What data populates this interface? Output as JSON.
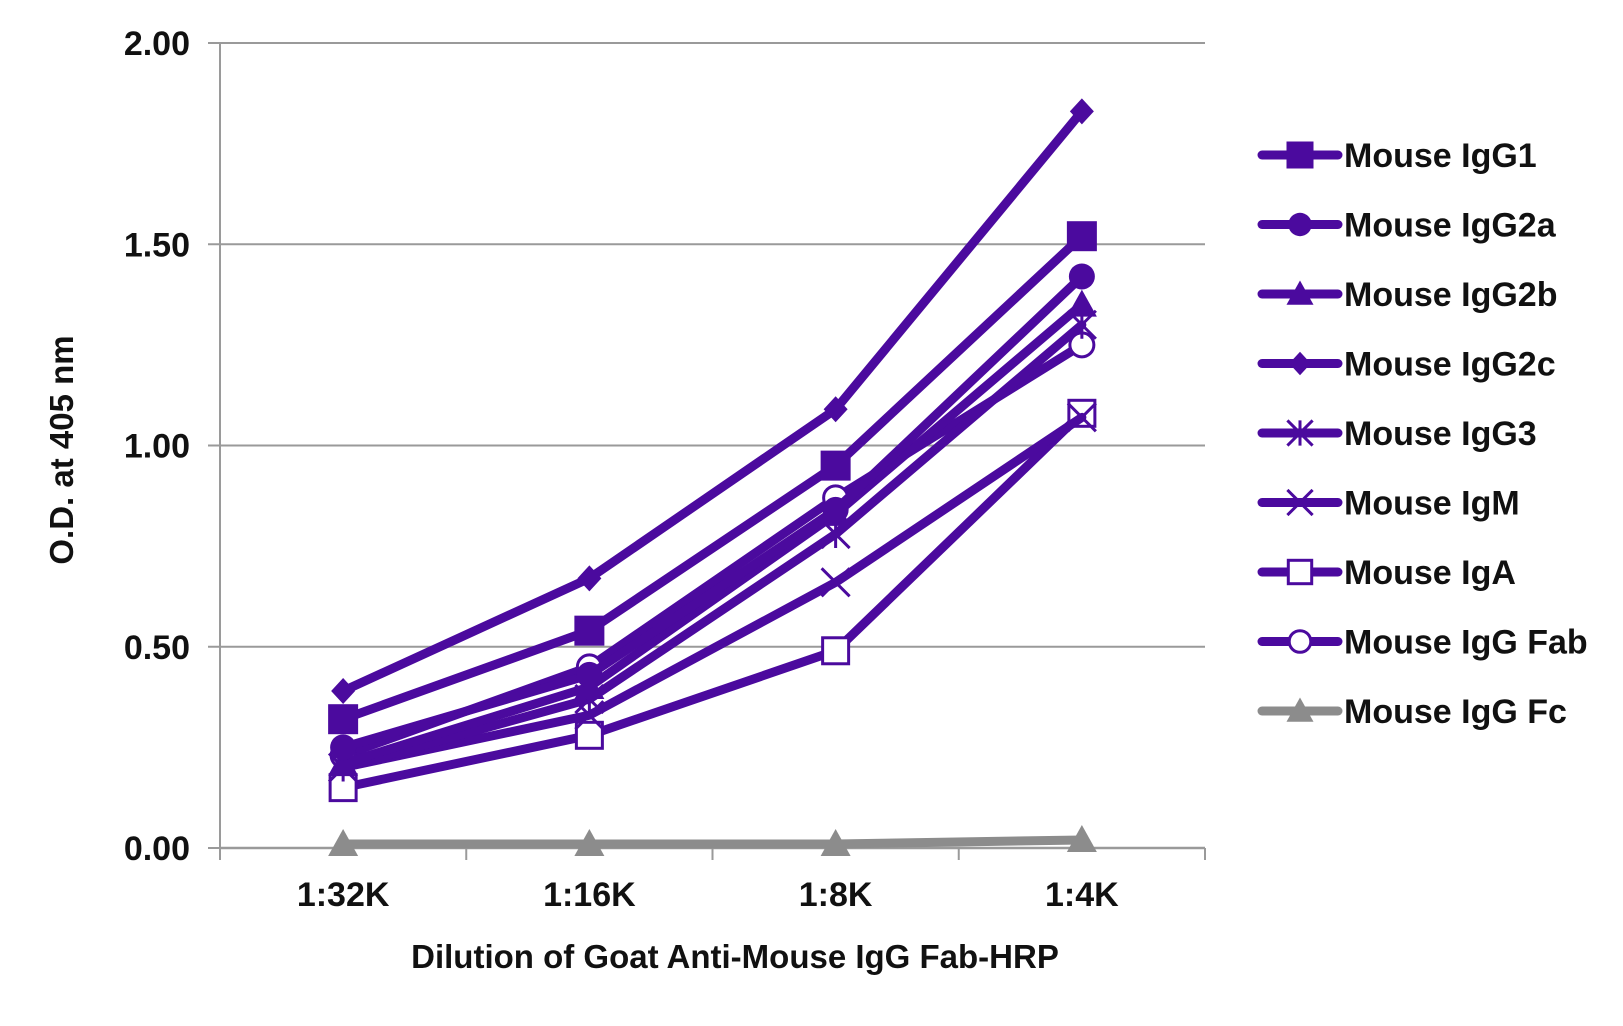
{
  "chart_data": {
    "type": "line",
    "title": "",
    "xlabel": "Dilution of Goat Anti-Mouse IgG Fab-HRP",
    "ylabel": "O.D. at 405 nm",
    "categories": [
      "1:32K",
      "1:16K",
      "1:8K",
      "1:4K"
    ],
    "ylim": [
      0,
      2
    ],
    "yticks": [
      "0.00",
      "0.50",
      "1.00",
      "1.50",
      "2.00"
    ],
    "ytick_values": [
      0,
      0.5,
      1,
      1.5,
      2
    ],
    "grid": "horizontal",
    "legend_position": "right",
    "series": [
      {
        "name": "Mouse IgG1",
        "marker": "square",
        "color": "#4B0A9E",
        "values": [
          0.32,
          0.54,
          0.95,
          1.52
        ]
      },
      {
        "name": "Mouse IgG2a",
        "marker": "circle",
        "color": "#4B0A9E",
        "values": [
          0.25,
          0.43,
          0.84,
          1.42
        ]
      },
      {
        "name": "Mouse IgG2b",
        "marker": "triangle",
        "color": "#4B0A9E",
        "values": [
          0.21,
          0.4,
          0.83,
          1.35
        ]
      },
      {
        "name": "Mouse IgG2c",
        "marker": "diamond",
        "color": "#4B0A9E",
        "values": [
          0.39,
          0.67,
          1.09,
          1.83
        ]
      },
      {
        "name": "Mouse IgG3",
        "marker": "asterisk",
        "color": "#4B0A9E",
        "values": [
          0.2,
          0.37,
          0.78,
          1.3
        ]
      },
      {
        "name": "Mouse IgM",
        "marker": "x",
        "color": "#4B0A9E",
        "values": [
          0.2,
          0.33,
          0.66,
          1.07
        ]
      },
      {
        "name": "Mouse IgA",
        "marker": "open-square",
        "color": "#4B0A9E",
        "values": [
          0.15,
          0.28,
          0.49,
          1.08
        ]
      },
      {
        "name": "Mouse IgG Fab",
        "marker": "open-circle",
        "color": "#4B0A9E",
        "values": [
          0.23,
          0.45,
          0.87,
          1.25
        ]
      },
      {
        "name": "Mouse IgG Fc",
        "marker": "triangle",
        "color": "#8C8C8C",
        "values": [
          0.01,
          0.01,
          0.01,
          0.02
        ]
      }
    ]
  }
}
